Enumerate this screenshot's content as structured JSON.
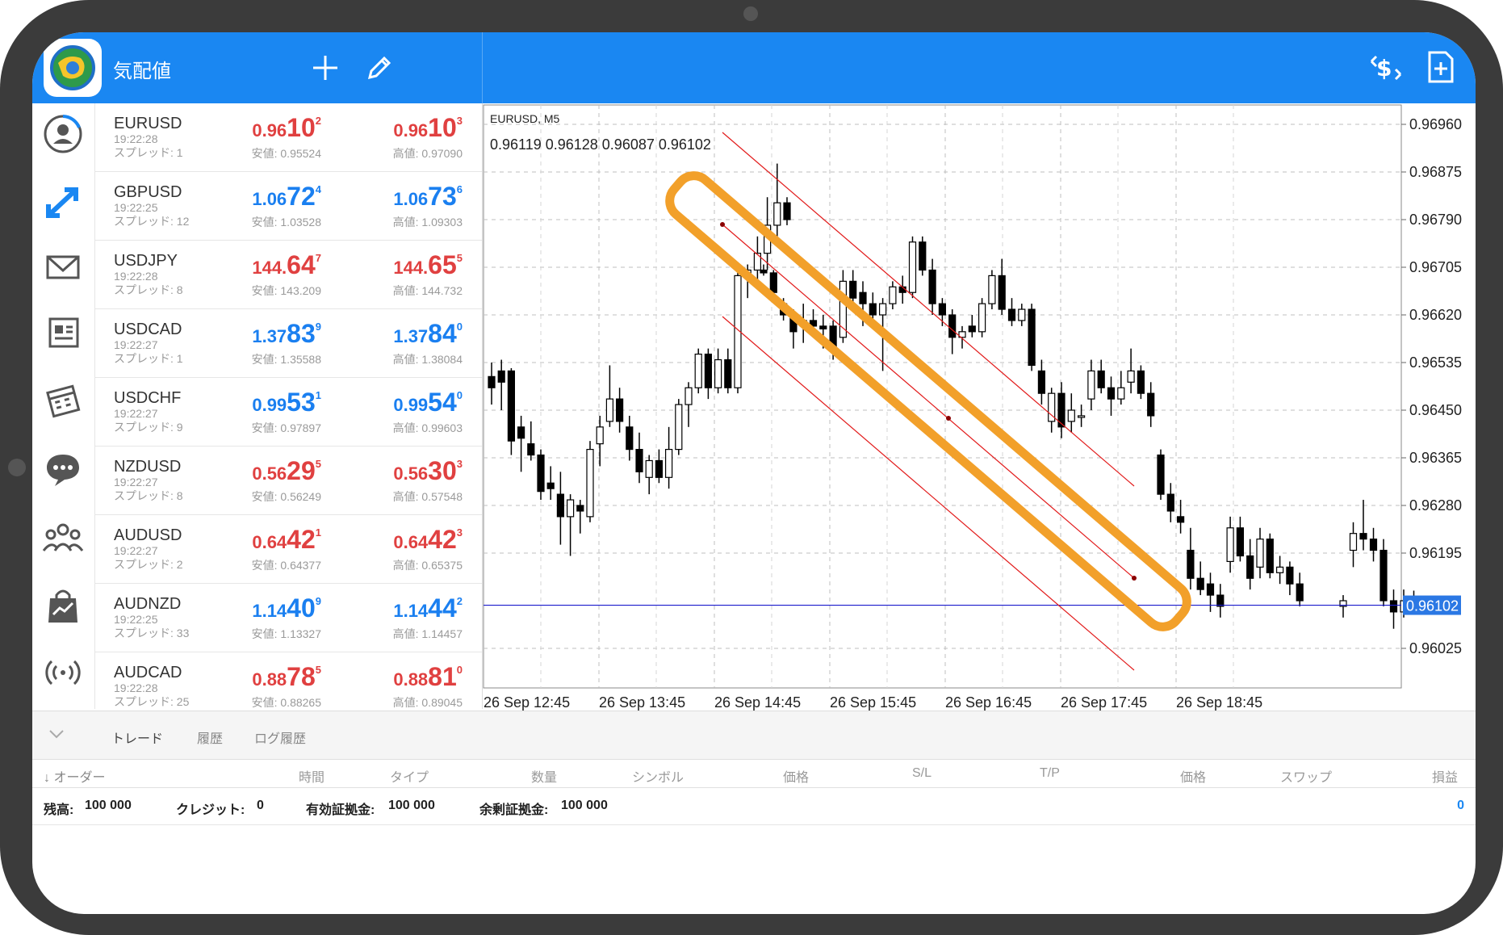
{
  "header": {
    "title": "気配値"
  },
  "quotes": [
    {
      "symbol": "EURUSD",
      "time": "19:22:28",
      "spread": "スプレッド: 1",
      "bid": {
        "pre": "0.96",
        "big": "10",
        "sup": "2"
      },
      "ask": {
        "pre": "0.96",
        "big": "10",
        "sup": "3"
      },
      "low": "安値: 0.95524",
      "high": "高値: 0.97090",
      "color": "#e04040"
    },
    {
      "symbol": "GBPUSD",
      "time": "19:22:25",
      "spread": "スプレッド: 12",
      "bid": {
        "pre": "1.06",
        "big": "72",
        "sup": "4"
      },
      "ask": {
        "pre": "1.06",
        "big": "73",
        "sup": "6"
      },
      "low": "安値: 1.03528",
      "high": "高値: 1.09303",
      "color": "#1a7ff0"
    },
    {
      "symbol": "USDJPY",
      "time": "19:22:28",
      "spread": "スプレッド: 8",
      "bid": {
        "pre": "144.",
        "big": "64",
        "sup": "7"
      },
      "ask": {
        "pre": "144.",
        "big": "65",
        "sup": "5"
      },
      "low": "安値: 143.209",
      "high": "高値: 144.732",
      "color": "#e04040"
    },
    {
      "symbol": "USDCAD",
      "time": "19:22:27",
      "spread": "スプレッド: 1",
      "bid": {
        "pre": "1.37",
        "big": "83",
        "sup": "9"
      },
      "ask": {
        "pre": "1.37",
        "big": "84",
        "sup": "0"
      },
      "low": "安値: 1.35588",
      "high": "高値: 1.38084",
      "color": "#1a7ff0"
    },
    {
      "symbol": "USDCHF",
      "time": "19:22:27",
      "spread": "スプレッド: 9",
      "bid": {
        "pre": "0.99",
        "big": "53",
        "sup": "1"
      },
      "ask": {
        "pre": "0.99",
        "big": "54",
        "sup": "0"
      },
      "low": "安値: 0.97897",
      "high": "高値: 0.99603",
      "color": "#1a7ff0"
    },
    {
      "symbol": "NZDUSD",
      "time": "19:22:27",
      "spread": "スプレッド: 8",
      "bid": {
        "pre": "0.56",
        "big": "29",
        "sup": "5"
      },
      "ask": {
        "pre": "0.56",
        "big": "30",
        "sup": "3"
      },
      "low": "安値: 0.56249",
      "high": "高値: 0.57548",
      "color": "#e04040"
    },
    {
      "symbol": "AUDUSD",
      "time": "19:22:27",
      "spread": "スプレッド: 2",
      "bid": {
        "pre": "0.64",
        "big": "42",
        "sup": "1"
      },
      "ask": {
        "pre": "0.64",
        "big": "42",
        "sup": "3"
      },
      "low": "安値: 0.64377",
      "high": "高値: 0.65375",
      "color": "#e04040"
    },
    {
      "symbol": "AUDNZD",
      "time": "19:22:25",
      "spread": "スプレッド: 33",
      "bid": {
        "pre": "1.14",
        "big": "40",
        "sup": "9"
      },
      "ask": {
        "pre": "1.14",
        "big": "44",
        "sup": "2"
      },
      "low": "安値: 1.13327",
      "high": "高値: 1.14457",
      "color": "#1a7ff0"
    },
    {
      "symbol": "AUDCAD",
      "time": "19:22:28",
      "spread": "スプレッド: 25",
      "bid": {
        "pre": "0.88",
        "big": "78",
        "sup": "5"
      },
      "ask": {
        "pre": "0.88",
        "big": "81",
        "sup": "0"
      },
      "low": "安値: 0.88265",
      "high": "高値: 0.89045",
      "color": "#e04040"
    }
  ],
  "chart": {
    "symbol_label": "EURUSD, M5",
    "ohlc": "0.96119 0.96128 0.96087 0.96102",
    "y_ticks": [
      "0.96960",
      "0.96875",
      "0.96790",
      "0.96705",
      "0.96620",
      "0.96535",
      "0.96450",
      "0.96365",
      "0.96280",
      "0.96195",
      "0.96025"
    ],
    "current_price": "0.96102",
    "x_ticks": [
      "26 Sep 12:45",
      "26 Sep 13:45",
      "26 Sep 14:45",
      "26 Sep 15:45",
      "26 Sep 16:45",
      "26 Sep 17:45",
      "26 Sep 18:45"
    ]
  },
  "chart_data": {
    "type": "candlestick",
    "title": "EURUSD, M5",
    "ylim": [
      0.9595,
      0.97
    ],
    "channel_color": "#e21b1b",
    "highlight_color": "#f2a02a",
    "price_line_color": "#1a1acc"
  },
  "tabs": [
    "トレード",
    "履歴",
    "ログ履歴"
  ],
  "table_headers": [
    "↓ オーダー",
    "時間",
    "タイプ",
    "数量",
    "シンボル",
    "価格",
    "S/L",
    "T/P",
    "価格",
    "スワップ",
    "損益"
  ],
  "balance": {
    "balance_label": "残高:",
    "balance_value": "100 000",
    "credit_label": "クレジット:",
    "credit_value": "0",
    "equity_label": "有効証拠金:",
    "equity_value": "100 000",
    "free_label": "余剰証拠金:",
    "free_value": "100 000",
    "profit": "0"
  },
  "colors": {
    "accent": "#1a87f2",
    "up": "#1a7ff0",
    "down": "#e04040"
  }
}
